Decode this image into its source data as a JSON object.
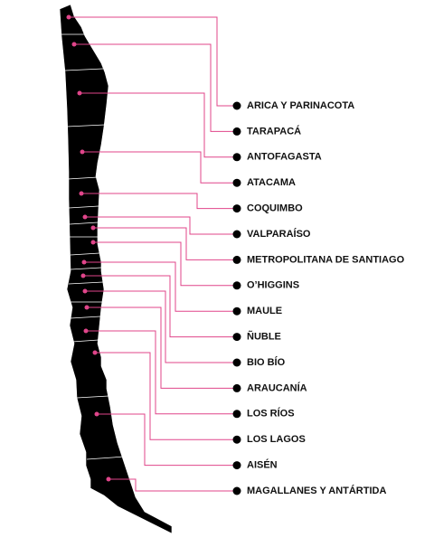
{
  "regions": [
    {
      "label": "ARICA Y PARINACOTA"
    },
    {
      "label": "TARAPACÁ"
    },
    {
      "label": "ANTOFAGASTA"
    },
    {
      "label": "ATACAMA"
    },
    {
      "label": "COQUIMBO"
    },
    {
      "label": "VALPARAÍSO"
    },
    {
      "label": "METROPOLITANA DE SANTIAGO"
    },
    {
      "label": "O’HIGGINS"
    },
    {
      "label": "MAULE"
    },
    {
      "label": "ÑUBLE"
    },
    {
      "label": "BIO BÍO"
    },
    {
      "label": "ARAUCANÍA"
    },
    {
      "label": "LOS RÍOS"
    },
    {
      "label": "LOS LAGOS"
    },
    {
      "label": "AISÉN"
    },
    {
      "label": "MAGALLANES Y ANTÁRTIDA"
    }
  ]
}
